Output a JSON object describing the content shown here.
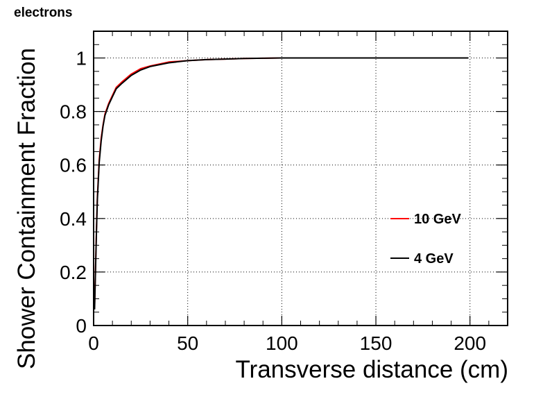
{
  "chart_data": {
    "type": "line",
    "title": "electrons",
    "xlabel": "Transverse distance (cm)",
    "ylabel": "Shower Containment Fraction",
    "xlim": [
      0,
      220
    ],
    "ylim": [
      0,
      1.1
    ],
    "x_ticks": [
      0,
      50,
      100,
      150,
      200
    ],
    "y_ticks": [
      0,
      0.2,
      0.4,
      0.6,
      0.8,
      1
    ],
    "grid": true,
    "legend_position": "right",
    "series": [
      {
        "name": "10 GeV",
        "color": "#ff0000",
        "x": [
          0.5,
          1,
          1.5,
          2,
          3,
          4,
          5,
          6,
          8,
          10,
          12,
          15,
          20,
          25,
          30,
          40,
          50,
          60,
          70,
          80,
          90,
          100,
          120,
          140,
          160,
          180,
          199
        ],
        "y": [
          0.07,
          0.21,
          0.36,
          0.48,
          0.62,
          0.7,
          0.75,
          0.79,
          0.83,
          0.86,
          0.89,
          0.91,
          0.94,
          0.96,
          0.97,
          0.985,
          0.99,
          0.994,
          0.996,
          0.998,
          0.999,
          1.0,
          1.0,
          1.0,
          1.0,
          1.0,
          1.0
        ]
      },
      {
        "name": "4 GeV",
        "color": "#000000",
        "x": [
          0.5,
          1,
          1.5,
          2,
          3,
          4,
          5,
          6,
          8,
          10,
          12,
          15,
          20,
          25,
          30,
          40,
          50,
          60,
          70,
          80,
          90,
          100,
          120,
          140,
          160,
          180,
          199
        ],
        "y": [
          0.06,
          0.2,
          0.35,
          0.47,
          0.61,
          0.69,
          0.745,
          0.785,
          0.825,
          0.855,
          0.885,
          0.905,
          0.935,
          0.955,
          0.968,
          0.982,
          0.99,
          0.994,
          0.996,
          0.998,
          0.999,
          1.0,
          1.0,
          1.0,
          1.0,
          1.0,
          1.0
        ]
      }
    ]
  }
}
